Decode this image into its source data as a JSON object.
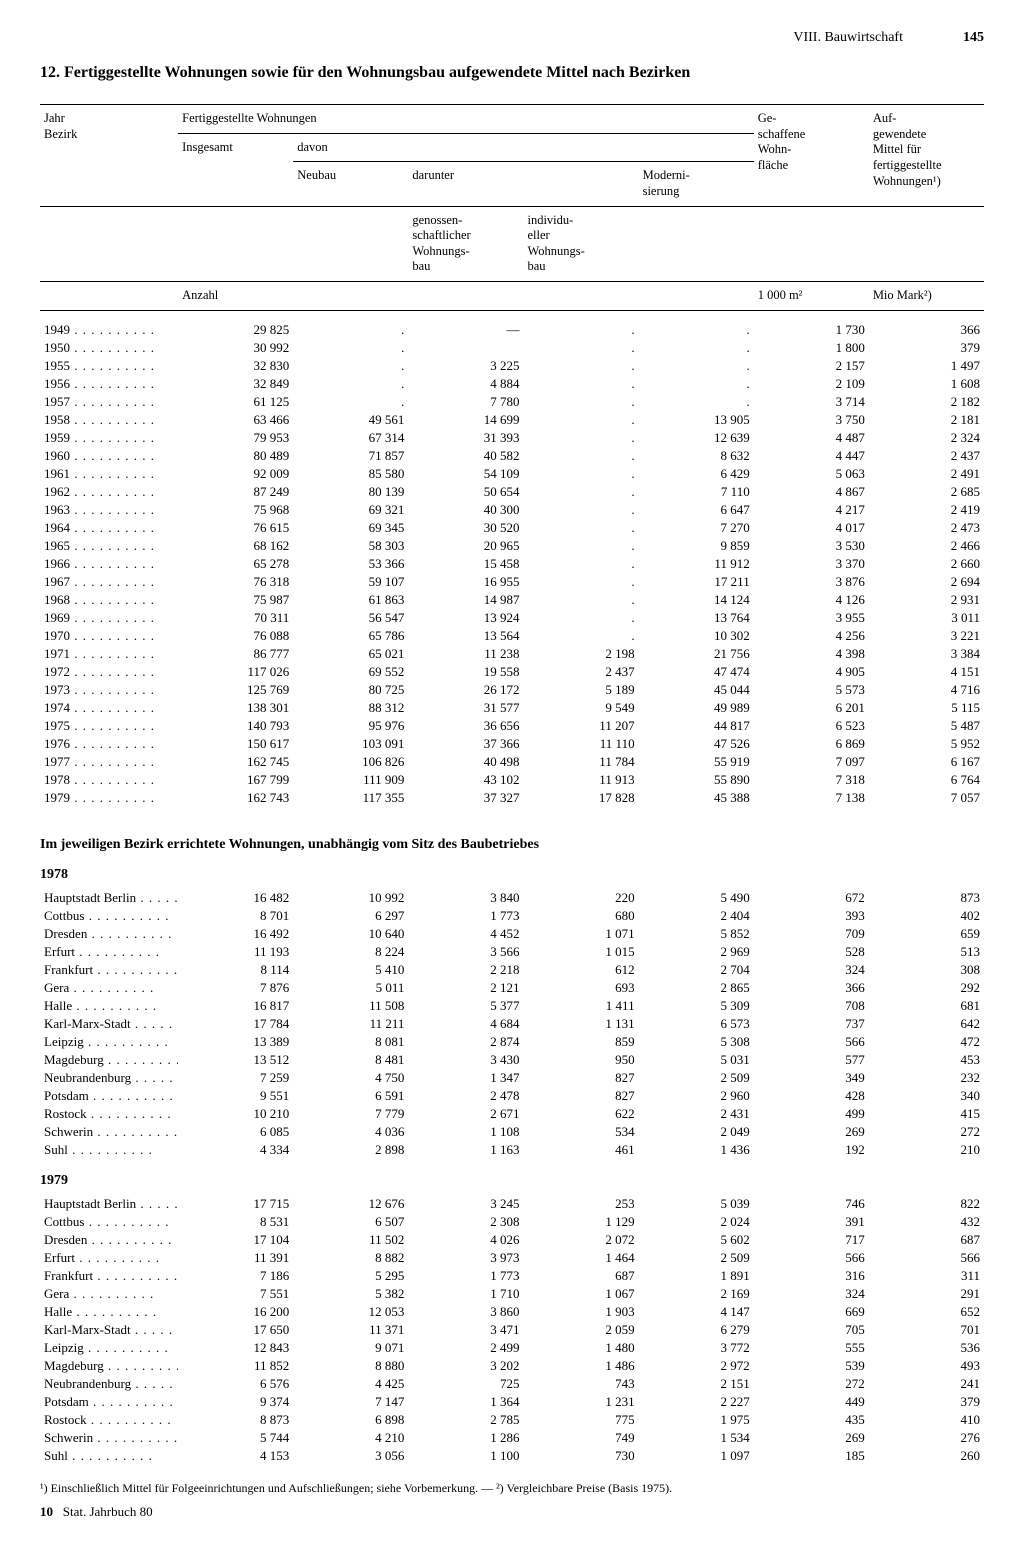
{
  "header": {
    "section": "VIII. Bauwirtschaft",
    "page": "145"
  },
  "title": "12. Fertiggestellte Wohnungen sowie für den Wohnungsbau aufgewendete Mittel nach Bezirken",
  "colhead": {
    "c0a": "Jahr",
    "c0b": "Bezirk",
    "grp1": "Fertiggestellte Wohnungen",
    "c1": "Insgesamt",
    "davon": "davon",
    "c2": "Neubau",
    "darunter": "darunter",
    "c3": "genossen-\nschaftlicher\nWohnungs-\nbau",
    "c4": "individu-\neller\nWohnungs-\nbau",
    "c5": "Moderni-\nsierung",
    "c6": "Ge-\nschaffene\nWohn-\nfläche",
    "c7": "Auf-\ngewendete\nMittel für\nfertiggestellte\nWohnungen¹)",
    "unit_anzahl": "Anzahl",
    "unit_m2": "1 000 m²",
    "unit_mark": "Mio Mark²)"
  },
  "years_rows": [
    [
      "1949",
      "29 825",
      ".",
      "—",
      ".",
      ".",
      "1 730",
      "366"
    ],
    [
      "1950",
      "30 992",
      ".",
      "",
      ".",
      ".",
      "1 800",
      "379"
    ],
    [
      "1955",
      "32 830",
      ".",
      "3 225",
      ".",
      ".",
      "2 157",
      "1 497"
    ],
    [
      "1956",
      "32 849",
      ".",
      "4 884",
      ".",
      ".",
      "2 109",
      "1 608"
    ],
    [
      "1957",
      "61 125",
      ".",
      "7 780",
      ".",
      ".",
      "3 714",
      "2 182"
    ],
    [
      "1958",
      "63 466",
      "49 561",
      "14 699",
      ".",
      "13 905",
      "3 750",
      "2 181"
    ],
    [
      "1959",
      "79 953",
      "67 314",
      "31 393",
      ".",
      "12 639",
      "4 487",
      "2 324"
    ],
    [
      "1960",
      "80 489",
      "71 857",
      "40 582",
      ".",
      "8 632",
      "4 447",
      "2 437"
    ],
    [
      "1961",
      "92 009",
      "85 580",
      "54 109",
      ".",
      "6 429",
      "5 063",
      "2 491"
    ],
    [
      "1962",
      "87 249",
      "80 139",
      "50 654",
      ".",
      "7 110",
      "4 867",
      "2 685"
    ],
    [
      "1963",
      "75 968",
      "69 321",
      "40 300",
      ".",
      "6 647",
      "4 217",
      "2 419"
    ],
    [
      "1964",
      "76 615",
      "69 345",
      "30 520",
      ".",
      "7 270",
      "4 017",
      "2 473"
    ],
    [
      "1965",
      "68 162",
      "58 303",
      "20 965",
      ".",
      "9 859",
      "3 530",
      "2 466"
    ],
    [
      "1966",
      "65 278",
      "53 366",
      "15 458",
      ".",
      "11 912",
      "3 370",
      "2 660"
    ],
    [
      "1967",
      "76 318",
      "59 107",
      "16 955",
      ".",
      "17 211",
      "3 876",
      "2 694"
    ],
    [
      "1968",
      "75 987",
      "61 863",
      "14 987",
      ".",
      "14 124",
      "4 126",
      "2 931"
    ],
    [
      "1969",
      "70 311",
      "56 547",
      "13 924",
      ".",
      "13 764",
      "3 955",
      "3 011"
    ],
    [
      "1970",
      "76 088",
      "65 786",
      "13 564",
      ".",
      "10 302",
      "4 256",
      "3 221"
    ],
    [
      "1971",
      "86 777",
      "65 021",
      "11 238",
      "2 198",
      "21 756",
      "4 398",
      "3 384"
    ],
    [
      "1972",
      "117 026",
      "69 552",
      "19 558",
      "2 437",
      "47 474",
      "4 905",
      "4 151"
    ],
    [
      "1973",
      "125 769",
      "80 725",
      "26 172",
      "5 189",
      "45 044",
      "5 573",
      "4 716"
    ],
    [
      "1974",
      "138 301",
      "88 312",
      "31 577",
      "9 549",
      "49 989",
      "6 201",
      "5 115"
    ],
    [
      "1975",
      "140 793",
      "95 976",
      "36 656",
      "11 207",
      "44 817",
      "6 523",
      "5 487"
    ],
    [
      "1976",
      "150 617",
      "103 091",
      "37 366",
      "11 110",
      "47 526",
      "6 869",
      "5 952"
    ],
    [
      "1977",
      "162 745",
      "106 826",
      "40 498",
      "11 784",
      "55 919",
      "7 097",
      "6 167"
    ],
    [
      "1978",
      "167 799",
      "111 909",
      "43 102",
      "11 913",
      "55 890",
      "7 318",
      "6 764"
    ],
    [
      "1979",
      "162 743",
      "117 355",
      "37 327",
      "17 828",
      "45 388",
      "7 138",
      "7 057"
    ]
  ],
  "subtitle": "Im jeweiligen Bezirk errichtete Wohnungen, unabhängig vom Sitz des Baubetriebes",
  "bezirk_1978_year": "1978",
  "bezirk_1978": [
    [
      "Hauptstadt Berlin",
      "16 482",
      "10 992",
      "3 840",
      "220",
      "5 490",
      "672",
      "873"
    ],
    [
      "Cottbus",
      "8 701",
      "6 297",
      "1 773",
      "680",
      "2 404",
      "393",
      "402"
    ],
    [
      "Dresden",
      "16 492",
      "10 640",
      "4 452",
      "1 071",
      "5 852",
      "709",
      "659"
    ],
    [
      "Erfurt",
      "11 193",
      "8 224",
      "3 566",
      "1 015",
      "2 969",
      "528",
      "513"
    ],
    [
      "Frankfurt",
      "8 114",
      "5 410",
      "2 218",
      "612",
      "2 704",
      "324",
      "308"
    ],
    [
      "Gera",
      "7 876",
      "5 011",
      "2 121",
      "693",
      "2 865",
      "366",
      "292"
    ],
    [
      "Halle",
      "16 817",
      "11 508",
      "5 377",
      "1 411",
      "5 309",
      "708",
      "681"
    ],
    [
      "Karl-Marx-Stadt",
      "17 784",
      "11 211",
      "4 684",
      "1 131",
      "6 573",
      "737",
      "642"
    ],
    [
      "Leipzig",
      "13 389",
      "8 081",
      "2 874",
      "859",
      "5 308",
      "566",
      "472"
    ],
    [
      "Magdeburg",
      "13 512",
      "8 481",
      "3 430",
      "950",
      "5 031",
      "577",
      "453"
    ],
    [
      "Neubrandenburg",
      "7 259",
      "4 750",
      "1 347",
      "827",
      "2 509",
      "349",
      "232"
    ],
    [
      "Potsdam",
      "9 551",
      "6 591",
      "2 478",
      "827",
      "2 960",
      "428",
      "340"
    ],
    [
      "Rostock",
      "10 210",
      "7 779",
      "2 671",
      "622",
      "2 431",
      "499",
      "415"
    ],
    [
      "Schwerin",
      "6 085",
      "4 036",
      "1 108",
      "534",
      "2 049",
      "269",
      "272"
    ],
    [
      "Suhl",
      "4 334",
      "2 898",
      "1 163",
      "461",
      "1 436",
      "192",
      "210"
    ]
  ],
  "bezirk_1979_year": "1979",
  "bezirk_1979": [
    [
      "Hauptstadt Berlin",
      "17 715",
      "12 676",
      "3 245",
      "253",
      "5 039",
      "746",
      "822"
    ],
    [
      "Cottbus",
      "8 531",
      "6 507",
      "2 308",
      "1 129",
      "2 024",
      "391",
      "432"
    ],
    [
      "Dresden",
      "17 104",
      "11 502",
      "4 026",
      "2 072",
      "5 602",
      "717",
      "687"
    ],
    [
      "Erfurt",
      "11 391",
      "8 882",
      "3 973",
      "1 464",
      "2 509",
      "566",
      "566"
    ],
    [
      "Frankfurt",
      "7 186",
      "5 295",
      "1 773",
      "687",
      "1 891",
      "316",
      "311"
    ],
    [
      "Gera",
      "7 551",
      "5 382",
      "1 710",
      "1 067",
      "2 169",
      "324",
      "291"
    ],
    [
      "Halle",
      "16 200",
      "12 053",
      "3 860",
      "1 903",
      "4 147",
      "669",
      "652"
    ],
    [
      "Karl-Marx-Stadt",
      "17 650",
      "11 371",
      "3 471",
      "2 059",
      "6 279",
      "705",
      "701"
    ],
    [
      "Leipzig",
      "12 843",
      "9 071",
      "2 499",
      "1 480",
      "3 772",
      "555",
      "536"
    ],
    [
      "Magdeburg",
      "11 852",
      "8 880",
      "3 202",
      "1 486",
      "2 972",
      "539",
      "493"
    ],
    [
      "Neubrandenburg",
      "6 576",
      "4 425",
      "725",
      "743",
      "2 151",
      "272",
      "241"
    ],
    [
      "Potsdam",
      "9 374",
      "7 147",
      "1 364",
      "1 231",
      "2 227",
      "449",
      "379"
    ],
    [
      "Rostock",
      "8 873",
      "6 898",
      "2 785",
      "775",
      "1 975",
      "435",
      "410"
    ],
    [
      "Schwerin",
      "5 744",
      "4 210",
      "1 286",
      "749",
      "1 534",
      "269",
      "276"
    ],
    [
      "Suhl",
      "4 153",
      "3 056",
      "1 100",
      "730",
      "1 097",
      "185",
      "260"
    ]
  ],
  "footnote": "¹) Einschließlich Mittel für Folgeeinrichtungen und Aufschließungen; siehe Vorbemerkung. —  ²) Vergleichbare Preise (Basis 1975).",
  "footer_num": "10",
  "footer_text": "Stat. Jahrbuch 80"
}
